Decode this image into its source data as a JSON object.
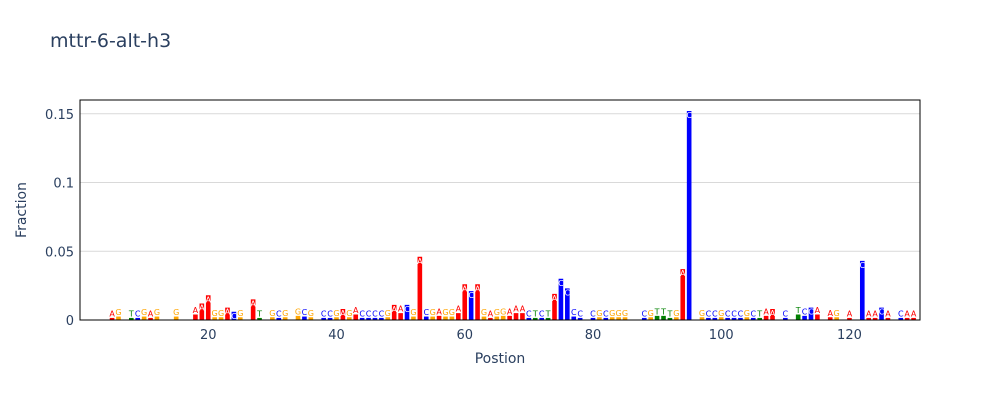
{
  "colors": {
    "A": "#ff0000",
    "C": "#0000ff",
    "G": "#ffa500",
    "T": "#008000",
    "axis_text": "#2a3f5f",
    "grid": "#d9d9d9"
  },
  "chart_data": {
    "type": "bar",
    "title": "mttr-6-alt-h3",
    "xlabel": "Postion",
    "ylabel": "Fraction",
    "xlim": [
      0,
      131
    ],
    "ylim": [
      0,
      0.16
    ],
    "xticks": [
      20,
      40,
      60,
      80,
      100,
      120
    ],
    "yticks": [
      0,
      0.05,
      0.1,
      0.15
    ],
    "ytick_labels": [
      "0",
      "0.05",
      "0.1",
      "0.15"
    ],
    "grid": true,
    "legend": "none",
    "bars": [
      {
        "x": 5,
        "base": "A",
        "value": 0.0015
      },
      {
        "x": 6,
        "base": "G",
        "value": 0.0025
      },
      {
        "x": 8,
        "base": "T",
        "value": 0.0015
      },
      {
        "x": 9,
        "base": "C",
        "value": 0.0015
      },
      {
        "x": 10,
        "base": "G",
        "value": 0.0025
      },
      {
        "x": 11,
        "base": "A",
        "value": 0.0015
      },
      {
        "x": 12,
        "base": "G",
        "value": 0.0025
      },
      {
        "x": 15,
        "base": "G",
        "value": 0.0025
      },
      {
        "x": 18,
        "base": "A",
        "value": 0.004
      },
      {
        "x": 19,
        "base": "A",
        "value": 0.012
      },
      {
        "x": 20,
        "base": "A",
        "value": 0.018
      },
      {
        "x": 21,
        "base": "G",
        "value": 0.002
      },
      {
        "x": 22,
        "base": "G",
        "value": 0.002
      },
      {
        "x": 23,
        "base": "A",
        "value": 0.009
      },
      {
        "x": 24,
        "base": "C",
        "value": 0.006
      },
      {
        "x": 25,
        "base": "G",
        "value": 0.002
      },
      {
        "x": 27,
        "base": "A",
        "value": 0.015
      },
      {
        "x": 28,
        "base": "T",
        "value": 0.0015
      },
      {
        "x": 30,
        "base": "G",
        "value": 0.002
      },
      {
        "x": 31,
        "base": "C",
        "value": 0.0015
      },
      {
        "x": 32,
        "base": "G",
        "value": 0.002
      },
      {
        "x": 34,
        "base": "G",
        "value": 0.003
      },
      {
        "x": 35,
        "base": "C",
        "value": 0.0025
      },
      {
        "x": 36,
        "base": "G",
        "value": 0.002
      },
      {
        "x": 38,
        "base": "C",
        "value": 0.0015
      },
      {
        "x": 39,
        "base": "C",
        "value": 0.0015
      },
      {
        "x": 40,
        "base": "G",
        "value": 0.002
      },
      {
        "x": 41,
        "base": "A",
        "value": 0.008
      },
      {
        "x": 42,
        "base": "G",
        "value": 0.002
      },
      {
        "x": 43,
        "base": "A",
        "value": 0.004
      },
      {
        "x": 44,
        "base": "C",
        "value": 0.0015
      },
      {
        "x": 45,
        "base": "C",
        "value": 0.0015
      },
      {
        "x": 46,
        "base": "C",
        "value": 0.0015
      },
      {
        "x": 47,
        "base": "C",
        "value": 0.0015
      },
      {
        "x": 48,
        "base": "G",
        "value": 0.002
      },
      {
        "x": 49,
        "base": "A",
        "value": 0.011
      },
      {
        "x": 50,
        "base": "A",
        "value": 0.005
      },
      {
        "x": 51,
        "base": "C",
        "value": 0.011
      },
      {
        "x": 52,
        "base": "G",
        "value": 0.0025
      },
      {
        "x": 53,
        "base": "A",
        "value": 0.046
      },
      {
        "x": 54,
        "base": "C",
        "value": 0.0025
      },
      {
        "x": 55,
        "base": "G",
        "value": 0.0025
      },
      {
        "x": 56,
        "base": "A",
        "value": 0.003
      },
      {
        "x": 57,
        "base": "G",
        "value": 0.0025
      },
      {
        "x": 58,
        "base": "G",
        "value": 0.0025
      },
      {
        "x": 59,
        "base": "A",
        "value": 0.005
      },
      {
        "x": 60,
        "base": "A",
        "value": 0.026
      },
      {
        "x": 61,
        "base": "C",
        "value": 0.021
      },
      {
        "x": 62,
        "base": "A",
        "value": 0.026
      },
      {
        "x": 63,
        "base": "G",
        "value": 0.0025
      },
      {
        "x": 64,
        "base": "A",
        "value": 0.0015
      },
      {
        "x": 65,
        "base": "G",
        "value": 0.0025
      },
      {
        "x": 66,
        "base": "G",
        "value": 0.003
      },
      {
        "x": 67,
        "base": "A",
        "value": 0.003
      },
      {
        "x": 68,
        "base": "A",
        "value": 0.005
      },
      {
        "x": 69,
        "base": "A",
        "value": 0.005
      },
      {
        "x": 70,
        "base": "C",
        "value": 0.0015
      },
      {
        "x": 71,
        "base": "T",
        "value": 0.0015
      },
      {
        "x": 72,
        "base": "C",
        "value": 0.0015
      },
      {
        "x": 73,
        "base": "T",
        "value": 0.0015
      },
      {
        "x": 74,
        "base": "A",
        "value": 0.019
      },
      {
        "x": 75,
        "base": "C",
        "value": 0.03
      },
      {
        "x": 76,
        "base": "C",
        "value": 0.023
      },
      {
        "x": 77,
        "base": "C",
        "value": 0.0025
      },
      {
        "x": 78,
        "base": "C",
        "value": 0.0015
      },
      {
        "x": 80,
        "base": "C",
        "value": 0.0015
      },
      {
        "x": 81,
        "base": "G",
        "value": 0.002
      },
      {
        "x": 82,
        "base": "C",
        "value": 0.0015
      },
      {
        "x": 83,
        "base": "G",
        "value": 0.002
      },
      {
        "x": 84,
        "base": "G",
        "value": 0.002
      },
      {
        "x": 85,
        "base": "G",
        "value": 0.002
      },
      {
        "x": 88,
        "base": "C",
        "value": 0.0015
      },
      {
        "x": 89,
        "base": "G",
        "value": 0.002
      },
      {
        "x": 90,
        "base": "T",
        "value": 0.003
      },
      {
        "x": 91,
        "base": "T",
        "value": 0.003
      },
      {
        "x": 92,
        "base": "T",
        "value": 0.0015
      },
      {
        "x": 93,
        "base": "G",
        "value": 0.002
      },
      {
        "x": 94,
        "base": "A",
        "value": 0.037
      },
      {
        "x": 95,
        "base": "C",
        "value": 0.152
      },
      {
        "x": 97,
        "base": "G",
        "value": 0.002
      },
      {
        "x": 98,
        "base": "C",
        "value": 0.0015
      },
      {
        "x": 99,
        "base": "C",
        "value": 0.0015
      },
      {
        "x": 100,
        "base": "G",
        "value": 0.002
      },
      {
        "x": 101,
        "base": "C",
        "value": 0.0015
      },
      {
        "x": 102,
        "base": "C",
        "value": 0.0015
      },
      {
        "x": 103,
        "base": "C",
        "value": 0.0015
      },
      {
        "x": 104,
        "base": "G",
        "value": 0.002
      },
      {
        "x": 105,
        "base": "C",
        "value": 0.0015
      },
      {
        "x": 106,
        "base": "T",
        "value": 0.0015
      },
      {
        "x": 107,
        "base": "A",
        "value": 0.003
      },
      {
        "x": 108,
        "base": "A",
        "value": 0.008
      },
      {
        "x": 110,
        "base": "C",
        "value": 0.0015
      },
      {
        "x": 112,
        "base": "T",
        "value": 0.004
      },
      {
        "x": 113,
        "base": "C",
        "value": 0.003
      },
      {
        "x": 114,
        "base": "C",
        "value": 0.009
      },
      {
        "x": 115,
        "base": "A",
        "value": 0.004
      },
      {
        "x": 117,
        "base": "A",
        "value": 0.002
      },
      {
        "x": 118,
        "base": "G",
        "value": 0.002
      },
      {
        "x": 120,
        "base": "A",
        "value": 0.0015
      },
      {
        "x": 122,
        "base": "C",
        "value": 0.043
      },
      {
        "x": 123,
        "base": "A",
        "value": 0.0015
      },
      {
        "x": 124,
        "base": "A",
        "value": 0.0015
      },
      {
        "x": 125,
        "base": "C",
        "value": 0.009
      },
      {
        "x": 126,
        "base": "A",
        "value": 0.0015
      },
      {
        "x": 128,
        "base": "C",
        "value": 0.0015
      },
      {
        "x": 129,
        "base": "A",
        "value": 0.0015
      },
      {
        "x": 130,
        "base": "A",
        "value": 0.0015
      }
    ]
  }
}
